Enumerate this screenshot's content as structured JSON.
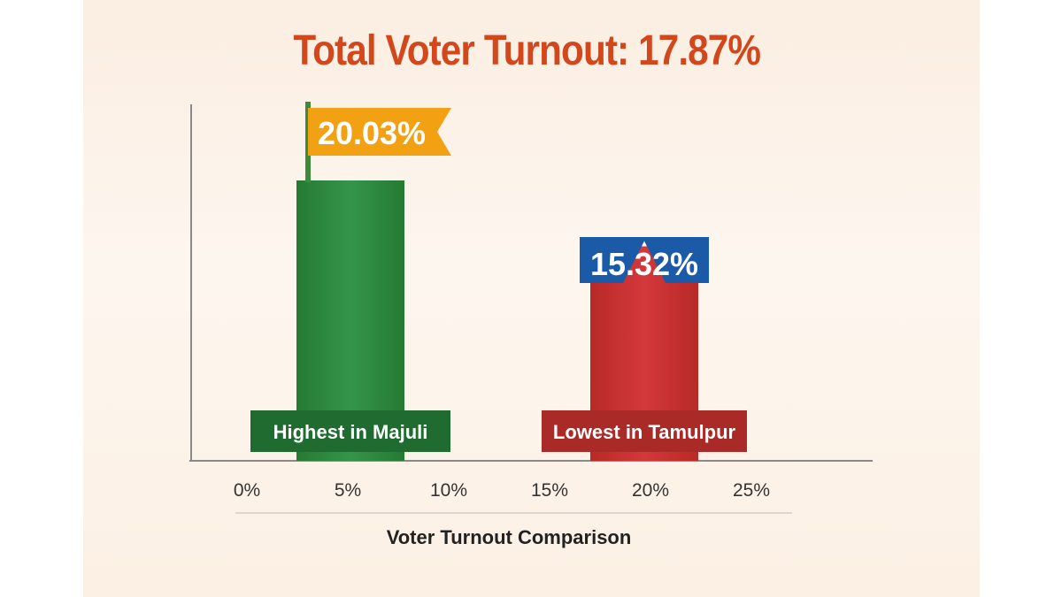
{
  "chart_data": {
    "type": "bar",
    "title": "Total Voter Turnout: 17.87%",
    "xlabel": "Voter Turnout Comparison",
    "ylabel": "",
    "ylim": [
      0,
      25
    ],
    "ticks": [
      "0%",
      "5%",
      "10%",
      "15%",
      "20%",
      "25%"
    ],
    "bars": [
      {
        "category": "Highest in Majuli",
        "value": 20.03,
        "value_label": "20.03%",
        "color": "#2e8a3c",
        "label_color": "#1f6b30",
        "flag_color": "#f2a112",
        "flag_style": "flag"
      },
      {
        "category": "Lowest in Tamulpur",
        "value": 15.32,
        "value_label": "15.32%",
        "color": "#c9302c",
        "label_color": "#a92a27",
        "flag_color": "#1a5aa6",
        "flag_style": "pointer"
      }
    ],
    "grid": false,
    "legend": "none"
  },
  "colors": {
    "title": "#d2471c",
    "axis": "#8a8a8a",
    "tick_text": "#333333"
  }
}
